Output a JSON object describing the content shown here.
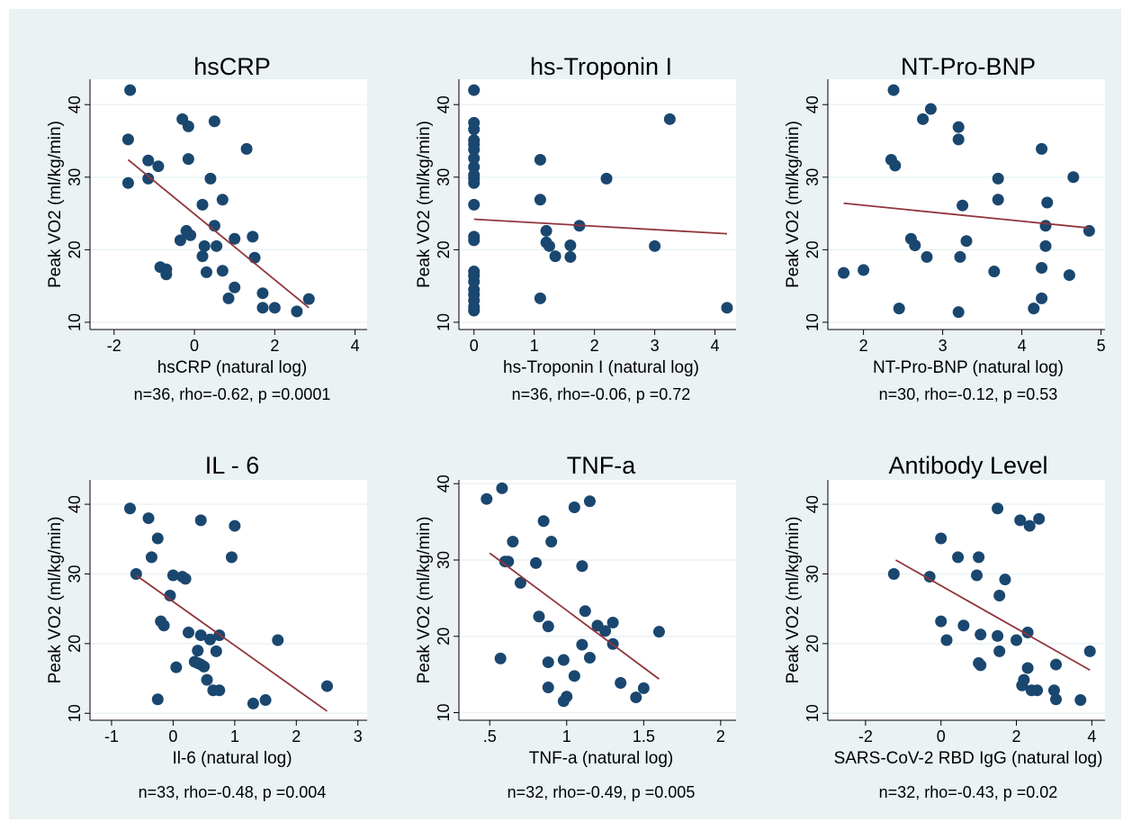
{
  "colors": {
    "background": "#ffffff",
    "outer_band": "#eaf2f3",
    "plot_region": "#ffffff",
    "grid": "#eaf2f3",
    "axis": "#000000",
    "marker": "#1a476f",
    "fit_line": "#90353b"
  },
  "chart_data": [
    {
      "type": "scatter",
      "title": "hsCRP",
      "xlabel": "hsCRP (natural log)",
      "ylabel": "Peak VO2 (ml/kg/min)",
      "stats": "n=36, rho=-0.62, p =0.0001",
      "xlim": [
        -2.6,
        4.3
      ],
      "ylim": [
        9,
        43.5
      ],
      "xticks": [
        -2,
        0,
        2,
        4
      ],
      "xtick_labels": [
        "-2",
        "0",
        "2",
        "4"
      ],
      "yticks": [
        10,
        20,
        30,
        40
      ],
      "ytick_labels": [
        "10",
        "20",
        "30",
        "40"
      ],
      "grid": true,
      "fit_line": {
        "x": [
          -1.65,
          2.85
        ],
        "y": [
          32.4,
          12.0
        ]
      },
      "points": {
        "x": [
          -1.6,
          -1.65,
          -1.65,
          -1.15,
          -1.15,
          -0.9,
          -0.85,
          -0.7,
          -0.7,
          -0.3,
          -0.35,
          -0.15,
          -0.15,
          -0.2,
          -0.1,
          0.5,
          0.55,
          0.4,
          0.2,
          0.25,
          0.2,
          0.3,
          0.5,
          0.7,
          1.0,
          1.0,
          1.3,
          1.45,
          1.5,
          0.7,
          0.85,
          1.7,
          1.7,
          2.0,
          2.55,
          2.85
        ],
        "y": [
          42.0,
          35.2,
          29.2,
          32.3,
          29.8,
          31.5,
          17.6,
          17.3,
          16.6,
          38.0,
          21.3,
          37.0,
          32.5,
          22.6,
          22.0,
          37.7,
          20.5,
          29.8,
          26.2,
          20.5,
          19.1,
          16.9,
          23.3,
          26.9,
          21.5,
          14.8,
          33.9,
          21.8,
          18.9,
          17.1,
          13.3,
          14.0,
          12.0,
          12.0,
          11.5,
          13.2
        ]
      }
    },
    {
      "type": "scatter",
      "title": "hs-Troponin I",
      "xlabel": "hs-Troponin I (natural log)",
      "ylabel": "Peak VO2 (ml/kg/min)",
      "stats": "n=36, rho=-0.06, p =0.72",
      "xlim": [
        -0.25,
        4.35
      ],
      "ylim": [
        9,
        43.5
      ],
      "xticks": [
        0,
        1,
        2,
        3,
        4
      ],
      "xtick_labels": [
        "0",
        "1",
        "2",
        "3",
        "4"
      ],
      "yticks": [
        10,
        20,
        30,
        40
      ],
      "ytick_labels": [
        "10",
        "20",
        "30",
        "40"
      ],
      "grid": true,
      "fit_line": {
        "x": [
          0,
          4.2
        ],
        "y": [
          24.2,
          22.2
        ]
      },
      "points": {
        "x": [
          0,
          0,
          0,
          0,
          0,
          0,
          0,
          0,
          0,
          0,
          0,
          0,
          0,
          0,
          0,
          0,
          0,
          0,
          0,
          0,
          0,
          0,
          1.1,
          1.1,
          1.1,
          1.2,
          1.25,
          1.35,
          1.6,
          1.75,
          2.2,
          3.0,
          3.25,
          4.2,
          1.2,
          1.6
        ],
        "y": [
          42.0,
          37.5,
          36.6,
          35.1,
          33.8,
          32.6,
          31.4,
          30.3,
          29.2,
          26.2,
          21.8,
          21.3,
          17.0,
          16.4,
          15.6,
          14.5,
          13.8,
          13.0,
          12.1,
          11.6,
          34.5,
          29.8,
          32.4,
          26.9,
          13.3,
          22.6,
          20.5,
          19.1,
          19.0,
          23.3,
          29.8,
          20.5,
          38.0,
          12.0,
          21.0,
          20.6
        ]
      }
    },
    {
      "type": "scatter",
      "title": "NT-Pro-BNP",
      "xlabel": "NT-Pro-BNP (natural log)",
      "ylabel": "Peak VO2 (ml/kg/min)",
      "stats": "n=30, rho=-0.12, p =0.53",
      "xlim": [
        1.55,
        5.05
      ],
      "ylim": [
        9,
        43.5
      ],
      "xticks": [
        2,
        3,
        4,
        5
      ],
      "xtick_labels": [
        "2",
        "3",
        "4",
        "5"
      ],
      "yticks": [
        10,
        20,
        30,
        40
      ],
      "ytick_labels": [
        "10",
        "20",
        "30",
        "40"
      ],
      "grid": true,
      "fit_line": {
        "x": [
          1.75,
          4.85
        ],
        "y": [
          26.4,
          23.0
        ]
      },
      "points": {
        "x": [
          1.75,
          2.0,
          2.35,
          2.4,
          2.38,
          2.45,
          2.6,
          2.65,
          2.75,
          2.8,
          2.85,
          3.2,
          3.2,
          3.2,
          3.25,
          3.22,
          3.3,
          3.65,
          3.7,
          3.7,
          4.15,
          4.25,
          4.25,
          4.25,
          4.3,
          4.3,
          4.32,
          4.6,
          4.65,
          4.85
        ],
        "y": [
          16.8,
          17.2,
          32.4,
          31.6,
          42.0,
          11.9,
          21.5,
          20.6,
          38.0,
          19.0,
          39.4,
          36.9,
          35.2,
          11.4,
          26.1,
          19.0,
          21.2,
          17.0,
          29.8,
          26.9,
          11.9,
          33.9,
          17.5,
          13.3,
          23.3,
          20.5,
          26.5,
          16.5,
          30.0,
          22.6
        ]
      }
    },
    {
      "type": "scatter",
      "title": "IL - 6",
      "xlabel": "Il-6 (natural log)",
      "ylabel": "Peak VO2 (ml/kg/min)",
      "stats": "n=33, rho=-0.48, p =0.004",
      "xlim": [
        -1.35,
        3.15
      ],
      "ylim": [
        9,
        43.5
      ],
      "xticks": [
        -1,
        0,
        1,
        2,
        3
      ],
      "xtick_labels": [
        "-1",
        "0",
        "1",
        "2",
        "3"
      ],
      "yticks": [
        10,
        20,
        30,
        40
      ],
      "ytick_labels": [
        "10",
        "20",
        "30",
        "40"
      ],
      "grid": true,
      "fit_line": {
        "x": [
          -0.6,
          2.5
        ],
        "y": [
          29.8,
          10.3
        ]
      },
      "points": {
        "x": [
          -0.7,
          -0.4,
          -0.25,
          -0.6,
          -0.35,
          0.0,
          0.15,
          0.2,
          0.45,
          1.0,
          0.95,
          -0.05,
          -0.15,
          -0.2,
          -0.25,
          0.05,
          0.25,
          0.45,
          0.6,
          0.35,
          0.4,
          0.55,
          0.75,
          0.4,
          0.45,
          0.5,
          0.65,
          0.75,
          1.7,
          1.3,
          1.5,
          2.5,
          0.7
        ],
        "y": [
          39.4,
          38.0,
          35.1,
          30.0,
          32.4,
          29.8,
          29.6,
          29.3,
          37.7,
          36.9,
          32.4,
          26.9,
          22.6,
          23.2,
          12.0,
          16.6,
          21.6,
          21.2,
          20.6,
          17.4,
          17.2,
          14.8,
          21.2,
          19.0,
          17.0,
          16.7,
          13.3,
          13.3,
          20.5,
          11.4,
          11.9,
          13.9,
          18.9
        ]
      }
    },
    {
      "type": "scatter",
      "title": "TNF-a",
      "xlabel": "TNF-a (natural log)",
      "ylabel": "Peak VO2 (ml/kg/min)",
      "stats": "n=32, rho=-0.49, p =0.005",
      "xlim": [
        0.3,
        2.1
      ],
      "ylim": [
        9,
        40.5
      ],
      "xticks": [
        0.5,
        1,
        1.5,
        2
      ],
      "xtick_labels": [
        ".5",
        "1",
        "1.5",
        "2"
      ],
      "yticks": [
        10,
        20,
        30,
        40
      ],
      "ytick_labels": [
        "10",
        "20",
        "30",
        "40"
      ],
      "grid": true,
      "fit_line": {
        "x": [
          0.5,
          1.6
        ],
        "y": [
          30.9,
          14.4
        ]
      },
      "points": {
        "x": [
          0.48,
          0.58,
          0.6,
          0.62,
          0.65,
          0.7,
          0.8,
          0.85,
          0.9,
          0.88,
          0.82,
          0.88,
          0.98,
          1.05,
          1.1,
          1.15,
          1.12,
          1.2,
          1.15,
          1.25,
          1.3,
          1.3,
          1.35,
          1.45,
          1.5,
          1.6,
          1.05,
          1.0,
          0.98,
          0.57,
          0.88,
          1.1
        ],
        "y": [
          38.0,
          39.4,
          29.8,
          29.8,
          32.4,
          27.0,
          29.6,
          35.1,
          32.4,
          21.3,
          22.6,
          16.6,
          16.9,
          36.9,
          29.2,
          37.7,
          23.3,
          21.4,
          17.2,
          20.7,
          21.8,
          19.0,
          13.9,
          12.0,
          13.2,
          20.6,
          14.8,
          12.1,
          11.5,
          17.1,
          13.3,
          18.9
        ]
      }
    },
    {
      "type": "scatter",
      "title": "Antibody Level",
      "xlabel": "SARS-CoV-2 RBD IgG (natural log)",
      "ylabel": "Peak VO2 (ml/kg/min)",
      "stats": "n=32, rho=-0.43, p =0.02",
      "xlim": [
        -3.0,
        4.35
      ],
      "ylim": [
        9,
        43.5
      ],
      "xticks": [
        -2,
        0,
        2,
        4
      ],
      "xtick_labels": [
        "-2",
        "0",
        "2",
        "4"
      ],
      "yticks": [
        10,
        20,
        30,
        40
      ],
      "ytick_labels": [
        "10",
        "20",
        "30",
        "40"
      ],
      "grid": true,
      "fit_line": {
        "x": [
          -1.2,
          3.95
        ],
        "y": [
          32.0,
          16.2
        ]
      },
      "points": {
        "x": [
          -1.25,
          -0.3,
          0.0,
          0.0,
          0.15,
          0.45,
          0.6,
          0.95,
          1.0,
          1.05,
          1.0,
          1.05,
          1.5,
          1.55,
          1.55,
          1.7,
          1.5,
          2.0,
          2.1,
          2.2,
          2.3,
          2.35,
          2.15,
          2.3,
          2.4,
          2.6,
          2.55,
          3.0,
          3.05,
          3.05,
          3.7,
          3.95
        ],
        "y": [
          30.0,
          29.6,
          35.1,
          23.2,
          20.5,
          32.4,
          22.6,
          29.8,
          32.4,
          21.3,
          17.2,
          16.9,
          39.4,
          26.9,
          18.9,
          29.2,
          21.1,
          20.5,
          37.7,
          14.8,
          16.5,
          36.9,
          14.0,
          21.6,
          13.3,
          37.9,
          13.3,
          13.3,
          12.0,
          17.0,
          11.9,
          18.9
        ]
      }
    }
  ]
}
